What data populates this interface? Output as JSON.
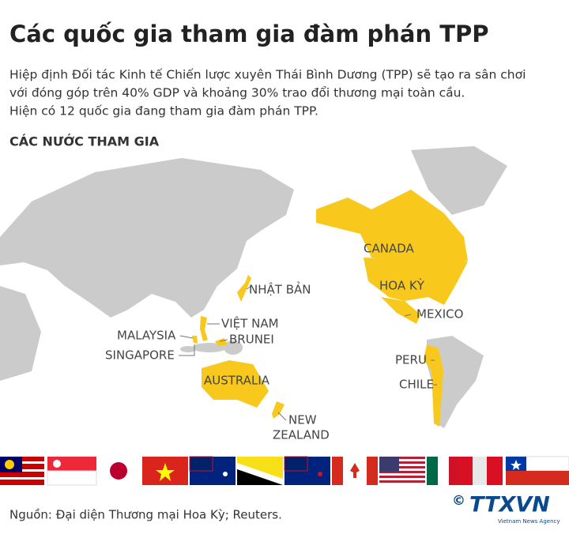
{
  "title": "Các quốc gia tham gia đàm phán TPP",
  "description": [
    "Hiệp định Đối tác Kinh tế Chiến lược xuyên Thái Bình Dương (TPP) sẽ tạo ra sân chơi",
    "với đóng góp trên 40% GDP và khoảng 30% trao đổi thương mại toàn cầu.",
    "Hiện có 12 quốc gia đang tham gia đàm phán TPP."
  ],
  "section_label": "CÁC NƯỚC THAM GIA",
  "countries": [
    {
      "lines": [
        "CANADA"
      ]
    },
    {
      "lines": [
        "HOA KỲ"
      ]
    },
    {
      "lines": [
        "MEXICO"
      ]
    },
    {
      "lines": [
        "NHẬT BẢN"
      ]
    },
    {
      "lines": [
        "VIỆT NAM"
      ]
    },
    {
      "lines": [
        "BRUNEI"
      ]
    },
    {
      "lines": [
        "MALAYSIA"
      ]
    },
    {
      "lines": [
        "SINGAPORE"
      ]
    },
    {
      "lines": [
        "AUSTRALIA"
      ]
    },
    {
      "lines": [
        "NEW",
        "ZEALAND"
      ]
    },
    {
      "lines": [
        "PERU"
      ]
    },
    {
      "lines": [
        "CHILE"
      ]
    }
  ],
  "source": "Nguồn: Đại diện Thương mại Hoa Kỳ; Reuters.",
  "logo": {
    "copyright": "©",
    "name": "TTXVN",
    "subtitle": "Vietnam News Agency"
  }
}
